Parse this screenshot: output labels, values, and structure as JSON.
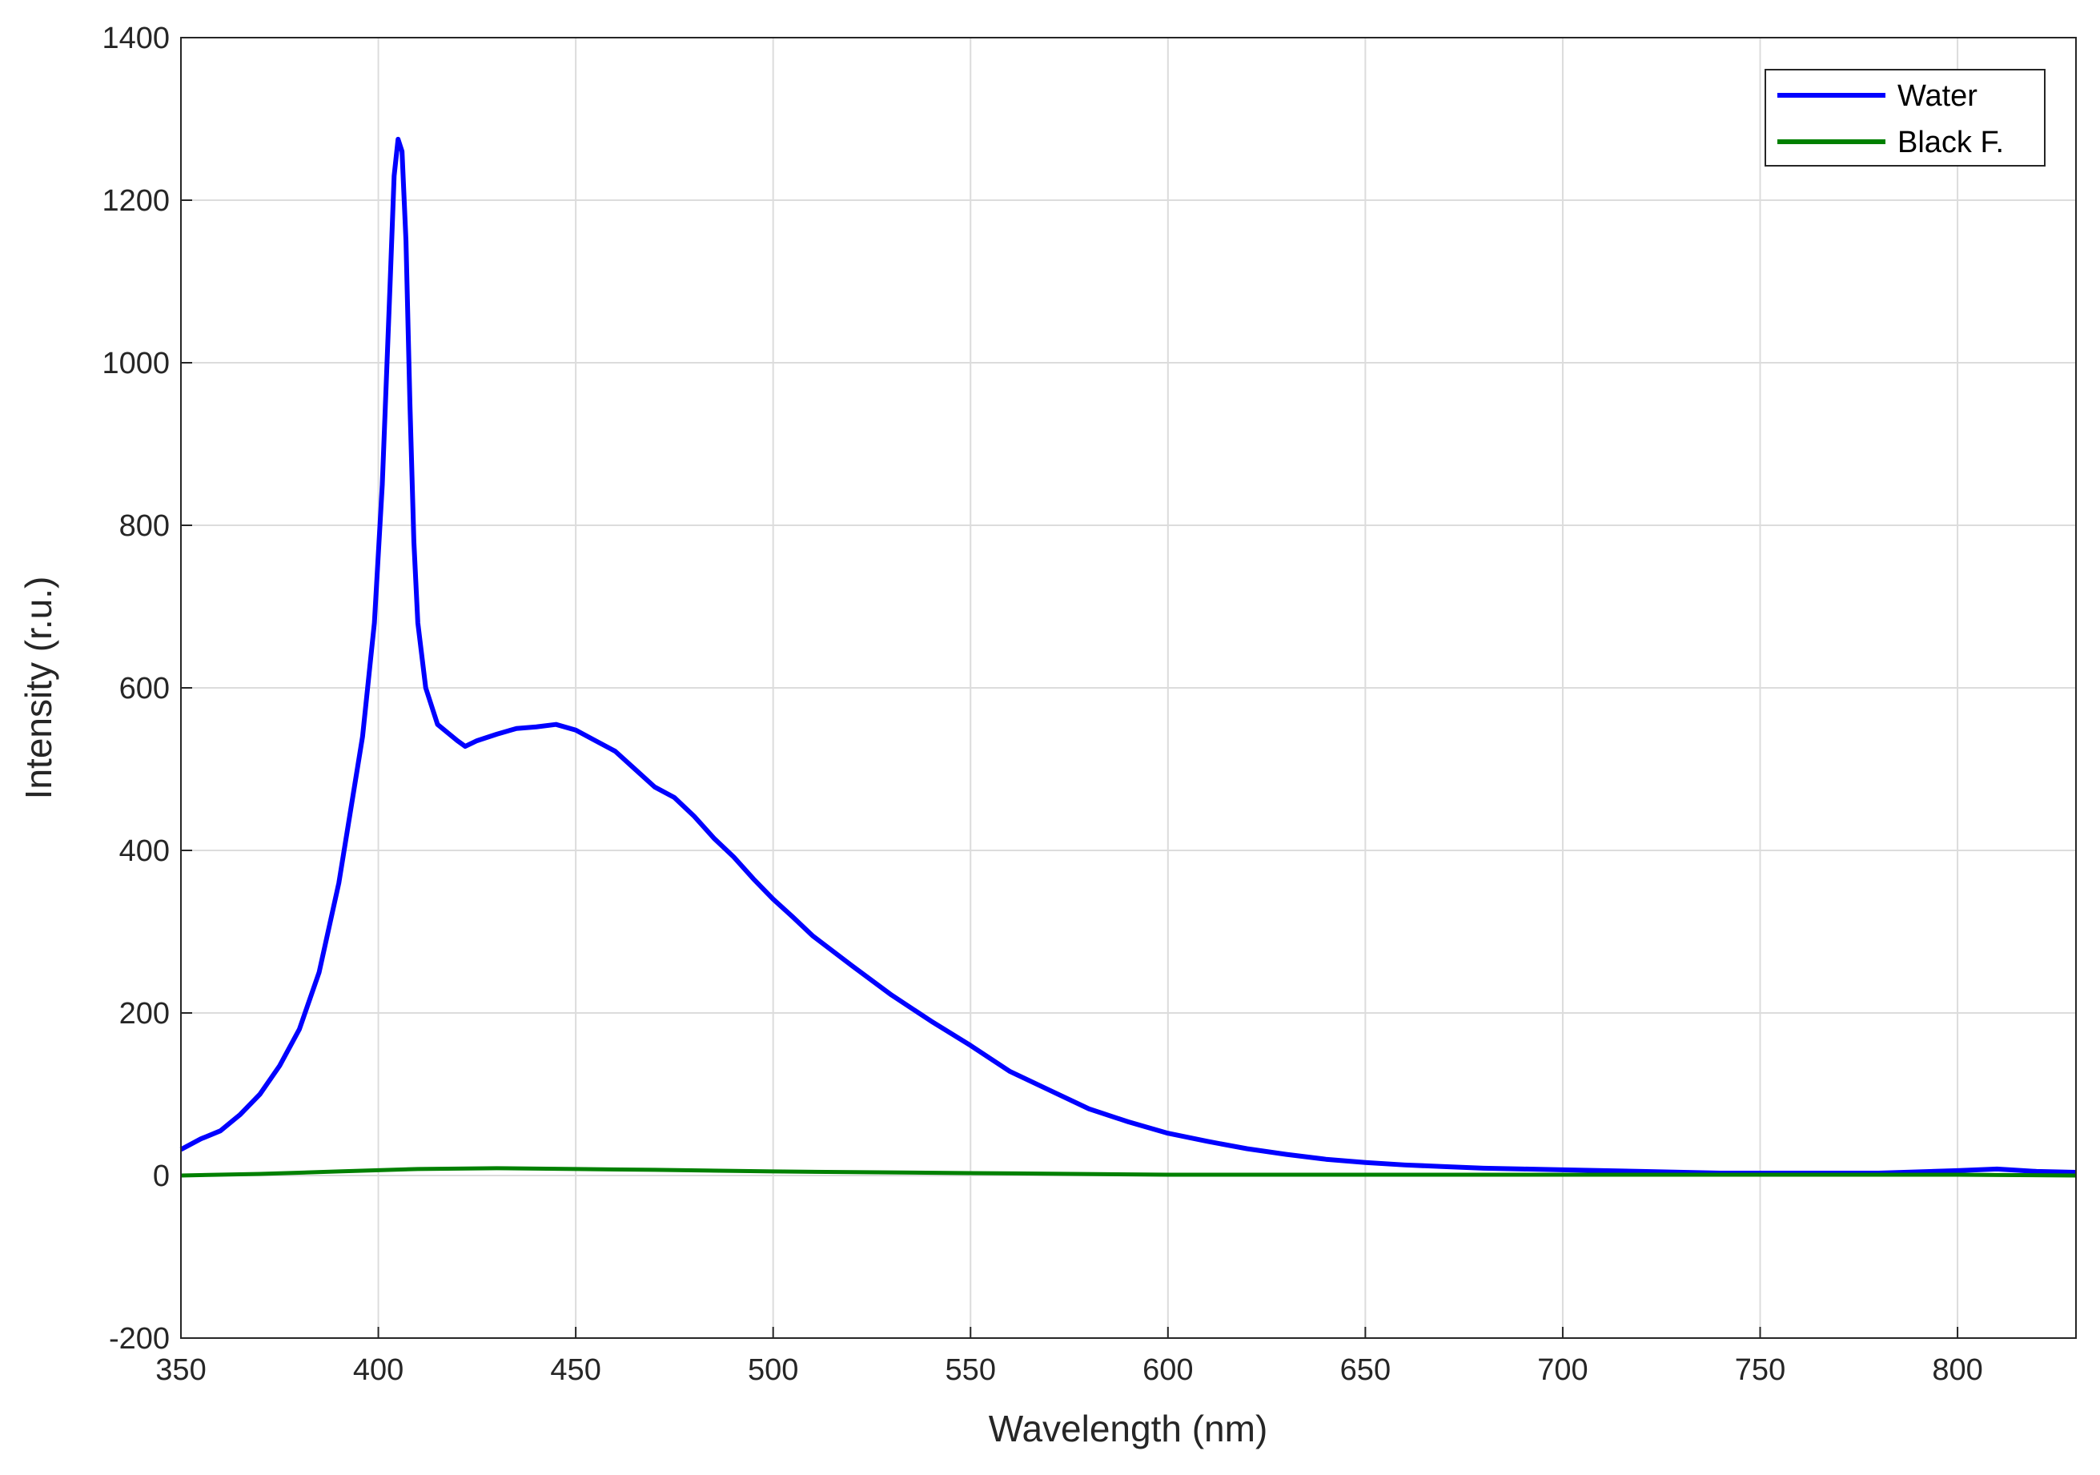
{
  "chart_data": {
    "type": "line",
    "x_label": "Wavelength (nm)",
    "y_label": "Intensity (r.u.)",
    "xlim": [
      350,
      830
    ],
    "ylim": [
      -200,
      1400
    ],
    "xticks": [
      350,
      400,
      450,
      500,
      550,
      600,
      650,
      700,
      750,
      800
    ],
    "yticks": [
      -200,
      0,
      200,
      400,
      600,
      800,
      1000,
      1200,
      1400
    ],
    "grid": true,
    "legend": "top-right",
    "series": [
      {
        "name": "Water",
        "color": "#0000ff",
        "x": [
          350,
          355,
          360,
          365,
          370,
          375,
          380,
          385,
          390,
          393,
          396,
          399,
          401,
          403,
          404,
          405,
          406,
          407,
          408,
          409,
          410,
          412,
          415,
          420,
          422,
          425,
          430,
          435,
          440,
          445,
          450,
          455,
          460,
          465,
          470,
          475,
          480,
          485,
          490,
          495,
          500,
          505,
          510,
          520,
          530,
          540,
          550,
          560,
          570,
          580,
          590,
          600,
          610,
          620,
          630,
          640,
          650,
          660,
          670,
          680,
          690,
          700,
          720,
          740,
          760,
          780,
          800,
          810,
          820,
          830
        ],
        "values": [
          32,
          45,
          55,
          75,
          100,
          135,
          180,
          250,
          360,
          450,
          540,
          680,
          850,
          1100,
          1230,
          1275,
          1260,
          1150,
          950,
          780,
          680,
          600,
          555,
          535,
          528,
          535,
          543,
          550,
          552,
          555,
          548,
          535,
          522,
          500,
          478,
          465,
          442,
          415,
          392,
          365,
          340,
          318,
          295,
          258,
          222,
          190,
          160,
          128,
          105,
          82,
          66,
          52,
          42,
          33,
          26,
          20,
          16,
          13,
          11,
          9,
          8,
          7,
          5,
          3,
          3,
          3,
          6,
          8,
          5,
          4
        ]
      },
      {
        "name": "Black F.",
        "color": "#008000",
        "x": [
          350,
          370,
          390,
          410,
          430,
          450,
          470,
          500,
          550,
          600,
          650,
          700,
          750,
          800,
          830
        ],
        "values": [
          0,
          2,
          5,
          8,
          9,
          8,
          7,
          5,
          3,
          1,
          1,
          1,
          1,
          1,
          0
        ]
      }
    ]
  }
}
